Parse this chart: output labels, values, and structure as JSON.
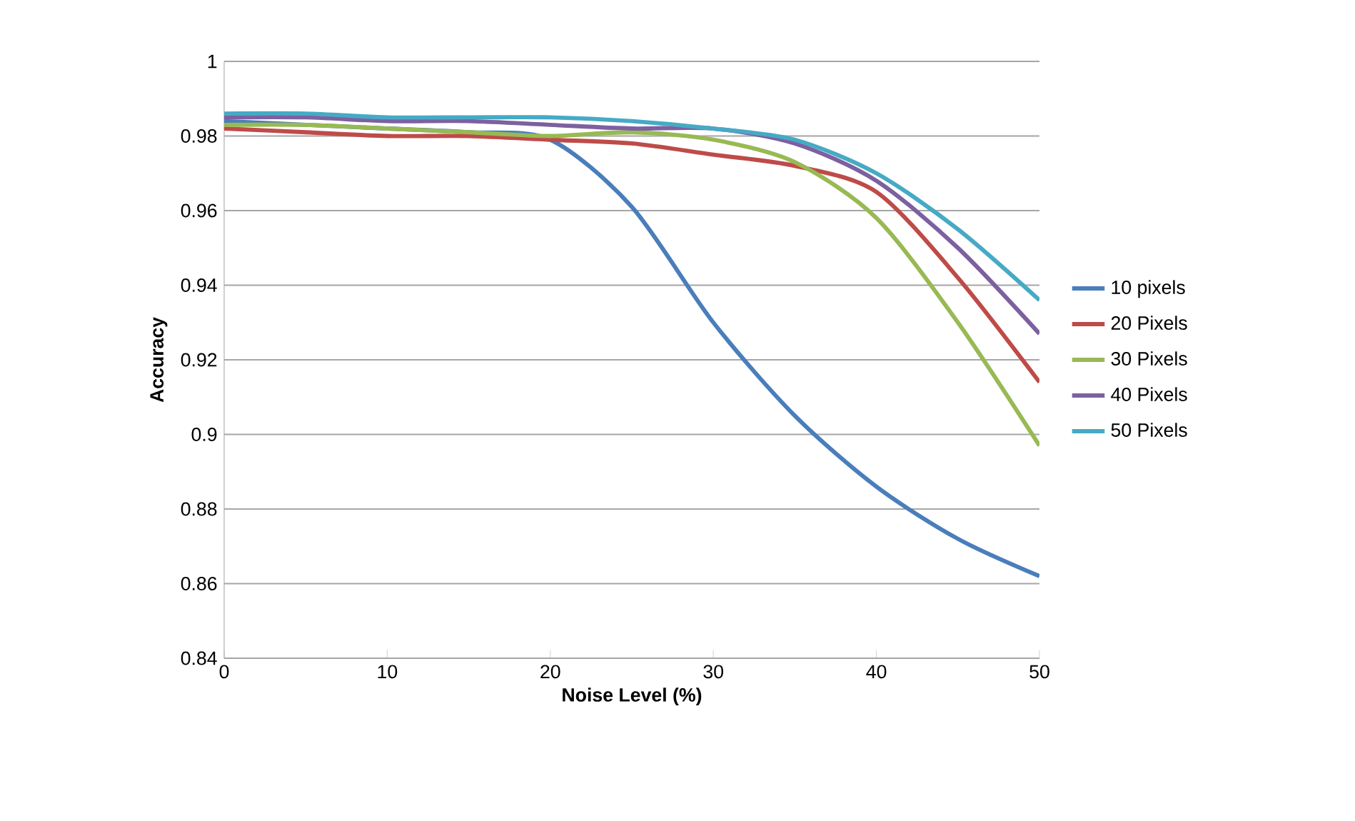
{
  "chart_data": {
    "type": "line",
    "xlabel": "Noise Level (%)",
    "ylabel": "Accuracy",
    "x": [
      0,
      5,
      10,
      15,
      20,
      25,
      30,
      35,
      40,
      45,
      50
    ],
    "series": [
      {
        "name": "10 pixels",
        "color": "#4a7ebb",
        "values": [
          0.984,
          0.983,
          0.982,
          0.981,
          0.979,
          0.961,
          0.93,
          0.905,
          0.886,
          0.872,
          0.862
        ]
      },
      {
        "name": "20 Pixels",
        "color": "#be4b48",
        "values": [
          0.982,
          0.981,
          0.98,
          0.98,
          0.979,
          0.978,
          0.975,
          0.972,
          0.965,
          0.942,
          0.914
        ]
      },
      {
        "name": "30 Pixels",
        "color": "#98b954",
        "values": [
          0.983,
          0.983,
          0.982,
          0.981,
          0.98,
          0.981,
          0.979,
          0.973,
          0.958,
          0.93,
          0.897
        ]
      },
      {
        "name": "40 Pixels",
        "color": "#7d60a0",
        "values": [
          0.985,
          0.985,
          0.984,
          0.984,
          0.983,
          0.982,
          0.982,
          0.978,
          0.968,
          0.95,
          0.927
        ]
      },
      {
        "name": "50 Pixels",
        "color": "#46aac5",
        "values": [
          0.986,
          0.986,
          0.985,
          0.985,
          0.985,
          0.984,
          0.982,
          0.979,
          0.97,
          0.955,
          0.936
        ]
      }
    ],
    "xlim": [
      0,
      50
    ],
    "xticks": [
      0,
      10,
      20,
      30,
      40,
      50
    ],
    "ylim": [
      0.84,
      1
    ],
    "yticks": [
      0.84,
      0.86,
      0.88,
      0.9,
      0.92,
      0.94,
      0.96,
      0.98,
      1
    ],
    "grid": "y",
    "legend": "right",
    "marker": "none",
    "line_style": "solid"
  }
}
